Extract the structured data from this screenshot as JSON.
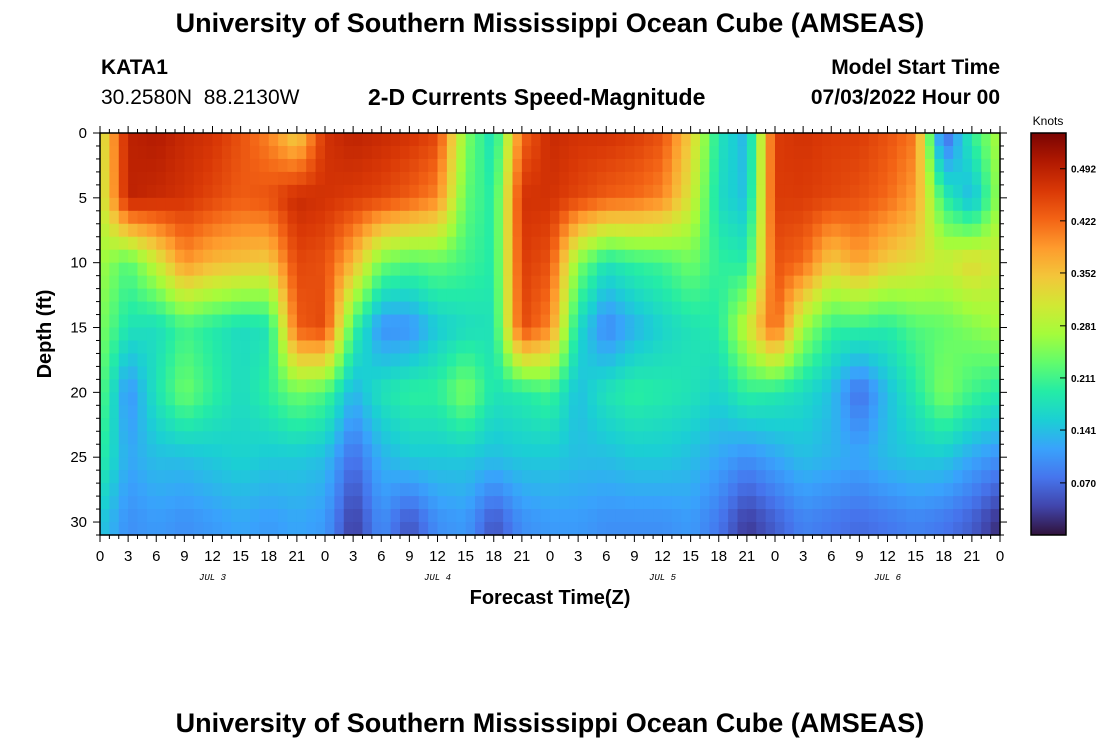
{
  "header": {
    "title": "University of Southern Mississippi Ocean Cube (AMSEAS)",
    "station": "KATA1",
    "coords": "30.2580N  88.2130W",
    "subtitle": "2-D Currents Speed-Magnitude",
    "model_start_label": "Model Start Time",
    "model_start_value": "07/03/2022 Hour 00"
  },
  "footer": {
    "title": "University of Southern Mississippi Ocean Cube (AMSEAS)"
  },
  "chart_data": {
    "type": "heatmap",
    "title": "2-D Currents Speed-Magnitude",
    "xlabel": "Forecast Time(Z)",
    "ylabel": "Depth (ft)",
    "x_tick_labels": [
      "0",
      "3",
      "6",
      "9",
      "12",
      "15",
      "18",
      "21",
      "0",
      "3",
      "6",
      "9",
      "12",
      "15",
      "18",
      "21",
      "0",
      "3",
      "6",
      "9",
      "12",
      "15",
      "18",
      "21",
      "0",
      "3",
      "6",
      "9",
      "12",
      "15",
      "18",
      "21",
      "0"
    ],
    "x_range_hours": [
      0,
      96
    ],
    "day_labels": [
      "JUL 3",
      "JUL 4",
      "JUL 5",
      "JUL 6"
    ],
    "y_ticks": [
      0,
      5,
      10,
      15,
      20,
      25,
      30
    ],
    "y_tick_labels": [
      "0",
      "5",
      "10",
      "15",
      "20",
      "25",
      "30"
    ],
    "y_range_ft": [
      0,
      31
    ],
    "colorbar": {
      "units": "Knots",
      "tick_values": [
        0.492,
        0.422,
        0.352,
        0.281,
        0.211,
        0.141,
        0.07
      ],
      "tick_labels": [
        "0.492",
        "0.422",
        "0.352",
        "0.281",
        "0.211",
        "0.141",
        "0.070"
      ],
      "range": [
        0.0,
        0.54
      ],
      "colors": [
        "#30123b",
        "#4145ab",
        "#4675ed",
        "#39a2fc",
        "#1bcfd4",
        "#24eca6",
        "#61fc6c",
        "#a4fc3b",
        "#d1e834",
        "#f3c63a",
        "#fe9b2d",
        "#f36315",
        "#d93806",
        "#b11901",
        "#7a0402"
      ]
    },
    "time_grid_hours": [
      0,
      3,
      6,
      9,
      12,
      15,
      18,
      21,
      24,
      27,
      30,
      33,
      36,
      39,
      42,
      45,
      48,
      51,
      54,
      57,
      60,
      63,
      66,
      69,
      72,
      75,
      78,
      81,
      84,
      87,
      90,
      93,
      96
    ],
    "depth_grid_ft": [
      0,
      5,
      10,
      15,
      20,
      25,
      30
    ],
    "values": [
      [
        0.3,
        0.49,
        0.5,
        0.48,
        0.47,
        0.44,
        0.4,
        0.33,
        0.47,
        0.49,
        0.48,
        0.47,
        0.45,
        0.25,
        0.17,
        0.42,
        0.48,
        0.47,
        0.47,
        0.46,
        0.44,
        0.34,
        0.18,
        0.13,
        0.46,
        0.47,
        0.46,
        0.46,
        0.44,
        0.41,
        0.05,
        0.2,
        0.28
      ],
      [
        0.29,
        0.49,
        0.48,
        0.47,
        0.45,
        0.43,
        0.44,
        0.48,
        0.47,
        0.46,
        0.45,
        0.43,
        0.4,
        0.23,
        0.19,
        0.47,
        0.47,
        0.45,
        0.43,
        0.42,
        0.4,
        0.31,
        0.17,
        0.14,
        0.46,
        0.46,
        0.45,
        0.44,
        0.42,
        0.38,
        0.2,
        0.13,
        0.27
      ],
      [
        0.27,
        0.22,
        0.3,
        0.39,
        0.36,
        0.35,
        0.34,
        0.45,
        0.44,
        0.36,
        0.24,
        0.22,
        0.23,
        0.21,
        0.19,
        0.46,
        0.44,
        0.25,
        0.18,
        0.2,
        0.21,
        0.24,
        0.2,
        0.19,
        0.44,
        0.42,
        0.34,
        0.38,
        0.34,
        0.32,
        0.3,
        0.33,
        0.3
      ],
      [
        0.25,
        0.18,
        0.17,
        0.21,
        0.19,
        0.17,
        0.18,
        0.43,
        0.45,
        0.21,
        0.1,
        0.1,
        0.15,
        0.17,
        0.18,
        0.45,
        0.4,
        0.17,
        0.09,
        0.13,
        0.16,
        0.18,
        0.19,
        0.3,
        0.43,
        0.27,
        0.2,
        0.2,
        0.19,
        0.22,
        0.23,
        0.25,
        0.27
      ],
      [
        0.23,
        0.1,
        0.18,
        0.24,
        0.2,
        0.17,
        0.2,
        0.24,
        0.22,
        0.13,
        0.18,
        0.2,
        0.2,
        0.25,
        0.18,
        0.19,
        0.21,
        0.14,
        0.18,
        0.2,
        0.19,
        0.18,
        0.16,
        0.2,
        0.19,
        0.17,
        0.14,
        0.07,
        0.14,
        0.19,
        0.25,
        0.21,
        0.19
      ],
      [
        0.2,
        0.12,
        0.14,
        0.14,
        0.15,
        0.16,
        0.15,
        0.15,
        0.14,
        0.07,
        0.13,
        0.15,
        0.15,
        0.15,
        0.14,
        0.15,
        0.15,
        0.14,
        0.14,
        0.15,
        0.15,
        0.14,
        0.12,
        0.1,
        0.12,
        0.14,
        0.13,
        0.12,
        0.14,
        0.15,
        0.15,
        0.12,
        0.1
      ],
      [
        0.15,
        0.1,
        0.11,
        0.1,
        0.11,
        0.12,
        0.11,
        0.12,
        0.11,
        0.03,
        0.1,
        0.05,
        0.1,
        0.11,
        0.05,
        0.1,
        0.11,
        0.11,
        0.1,
        0.1,
        0.1,
        0.11,
        0.08,
        0.03,
        0.06,
        0.09,
        0.08,
        0.07,
        0.08,
        0.09,
        0.08,
        0.06,
        0.02
      ]
    ]
  }
}
